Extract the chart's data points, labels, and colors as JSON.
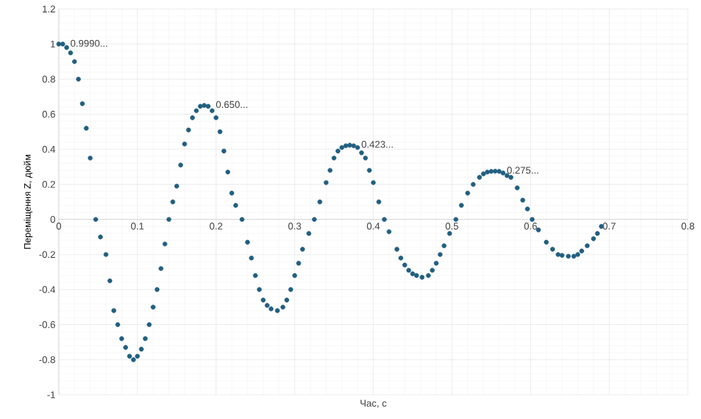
{
  "chart_data": {
    "type": "scatter",
    "xlabel": "Час, с",
    "ylabel": "Переміщення Z, дюйм",
    "x": [
      0,
      0.005,
      0.01,
      0.015,
      0.02,
      0.025,
      0.03,
      0.035,
      0.04,
      0.047,
      0.053,
      0.06,
      0.065,
      0.07,
      0.075,
      0.08,
      0.085,
      0.09,
      0.095,
      0.1,
      0.105,
      0.11,
      0.115,
      0.12,
      0.125,
      0.13,
      0.135,
      0.14,
      0.145,
      0.15,
      0.155,
      0.16,
      0.165,
      0.17,
      0.175,
      0.18,
      0.185,
      0.19,
      0.195,
      0.2,
      0.205,
      0.21,
      0.215,
      0.22,
      0.225,
      0.233,
      0.24,
      0.245,
      0.25,
      0.255,
      0.26,
      0.265,
      0.27,
      0.278,
      0.285,
      0.29,
      0.295,
      0.3,
      0.305,
      0.31,
      0.318,
      0.325,
      0.332,
      0.34,
      0.345,
      0.35,
      0.355,
      0.36,
      0.365,
      0.37,
      0.375,
      0.38,
      0.385,
      0.39,
      0.395,
      0.4,
      0.407,
      0.414,
      0.42,
      0.43,
      0.435,
      0.44,
      0.445,
      0.45,
      0.455,
      0.462,
      0.47,
      0.475,
      0.48,
      0.485,
      0.49,
      0.497,
      0.505,
      0.512,
      0.52,
      0.527,
      0.535,
      0.54,
      0.545,
      0.55,
      0.555,
      0.56,
      0.565,
      0.57,
      0.575,
      0.583,
      0.59,
      0.596,
      0.602,
      0.61,
      0.62,
      0.628,
      0.635,
      0.64,
      0.648,
      0.655,
      0.66,
      0.665,
      0.672,
      0.68,
      0.685,
      0.69
    ],
    "values": [
      1.0,
      1.0,
      0.98,
      0.95,
      0.9,
      0.8,
      0.66,
      0.52,
      0.35,
      0.0,
      -0.1,
      -0.2,
      -0.35,
      -0.52,
      -0.6,
      -0.68,
      -0.73,
      -0.78,
      -0.8,
      -0.78,
      -0.74,
      -0.68,
      -0.6,
      -0.5,
      -0.4,
      -0.28,
      -0.14,
      0.0,
      0.1,
      0.19,
      0.31,
      0.43,
      0.51,
      0.58,
      0.62,
      0.645,
      0.65,
      0.645,
      0.62,
      0.58,
      0.5,
      0.39,
      0.27,
      0.15,
      0.08,
      0.0,
      -0.13,
      -0.22,
      -0.32,
      -0.4,
      -0.46,
      -0.49,
      -0.51,
      -0.52,
      -0.5,
      -0.46,
      -0.4,
      -0.32,
      -0.25,
      -0.17,
      -0.08,
      0.0,
      0.1,
      0.21,
      0.28,
      0.35,
      0.39,
      0.41,
      0.42,
      0.423,
      0.42,
      0.41,
      0.38,
      0.35,
      0.28,
      0.21,
      0.1,
      0.0,
      -0.07,
      -0.17,
      -0.22,
      -0.26,
      -0.29,
      -0.31,
      -0.32,
      -0.33,
      -0.32,
      -0.29,
      -0.25,
      -0.2,
      -0.15,
      -0.08,
      0.0,
      0.08,
      0.15,
      0.2,
      0.24,
      0.26,
      0.27,
      0.274,
      0.275,
      0.274,
      0.265,
      0.25,
      0.24,
      0.18,
      0.11,
      0.06,
      0.0,
      -0.06,
      -0.13,
      -0.17,
      -0.2,
      -0.205,
      -0.21,
      -0.21,
      -0.2,
      -0.18,
      -0.15,
      -0.11,
      -0.08,
      -0.04
    ],
    "color": "#215f80",
    "marker": "circle",
    "xlim": [
      0,
      0.8
    ],
    "xticks": [
      0,
      0.1,
      0.2,
      0.3,
      0.4,
      0.5,
      0.6,
      0.7,
      0.8
    ],
    "ylim": [
      -1,
      1.2
    ],
    "yticks": [
      -1,
      -0.8,
      -0.6,
      -0.4,
      -0.2,
      0,
      0.2,
      0.4,
      0.6,
      0.8,
      1,
      1.2
    ],
    "grid": true,
    "annotations": [
      {
        "text": "0.9990...",
        "x": 0,
        "y": 0.999
      },
      {
        "text": "0.650...",
        "x": 0.185,
        "y": 0.65
      },
      {
        "text": "0.423...",
        "x": 0.37,
        "y": 0.423
      },
      {
        "text": "0.275...",
        "x": 0.555,
        "y": 0.275
      }
    ]
  }
}
